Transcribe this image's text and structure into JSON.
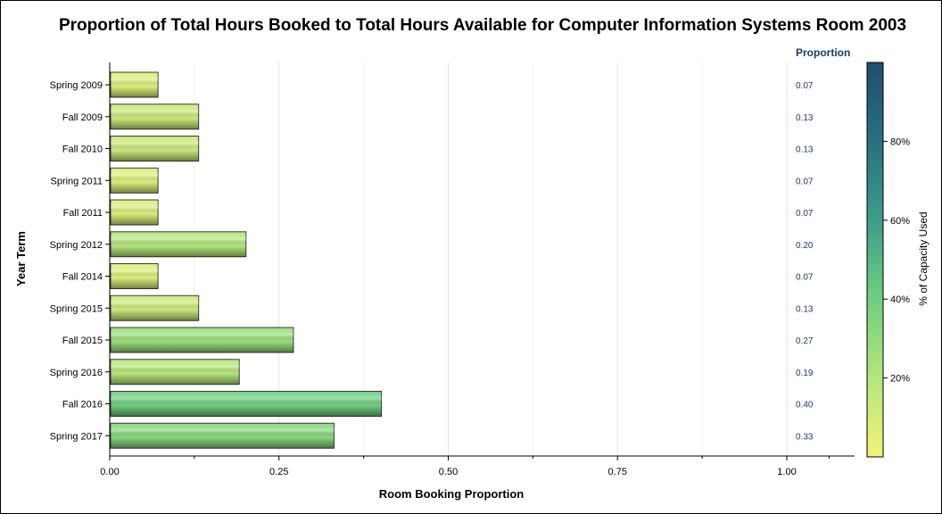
{
  "chart_data": {
    "type": "bar",
    "orientation": "horizontal",
    "title": "Proportion of Total Hours Booked to Total Hours Available for Computer Information Systems Room 2003",
    "xlabel": "Room Booking Proportion",
    "ylabel": "Year Term",
    "xlim": [
      0,
      1.1
    ],
    "x_ticks": [
      "0.00",
      "0.25",
      "0.50",
      "0.75",
      "1.00"
    ],
    "grid": true,
    "categories": [
      "Spring 2009",
      "Fall 2009",
      "Fall 2010",
      "Spring 2011",
      "Fall 2011",
      "Spring 2012",
      "Fall 2014",
      "Spring 2015",
      "Fall 2015",
      "Spring 2016",
      "Fall 2016",
      "Spring 2017"
    ],
    "values": [
      0.07,
      0.13,
      0.13,
      0.07,
      0.07,
      0.2,
      0.07,
      0.13,
      0.27,
      0.19,
      0.4,
      0.33
    ],
    "data_labels": [
      "0.07",
      "0.13",
      "0.13",
      "0.07",
      "0.07",
      "0.20",
      "0.07",
      "0.13",
      "0.27",
      "0.19",
      "0.40",
      "0.33"
    ],
    "data_label_header": "Proportion",
    "color_scale": {
      "title": "% of Capacity Used",
      "range": [
        0,
        100
      ],
      "ticks": [
        "20%",
        "40%",
        "60%",
        "80%"
      ],
      "tick_values": [
        20,
        40,
        60,
        80
      ],
      "display_min": 0,
      "display_max": 100,
      "colors": [
        "#f2f27a",
        "#b4e67a",
        "#6fcf7f",
        "#3c9e8a",
        "#2a6f80",
        "#1f4e6e"
      ]
    }
  }
}
